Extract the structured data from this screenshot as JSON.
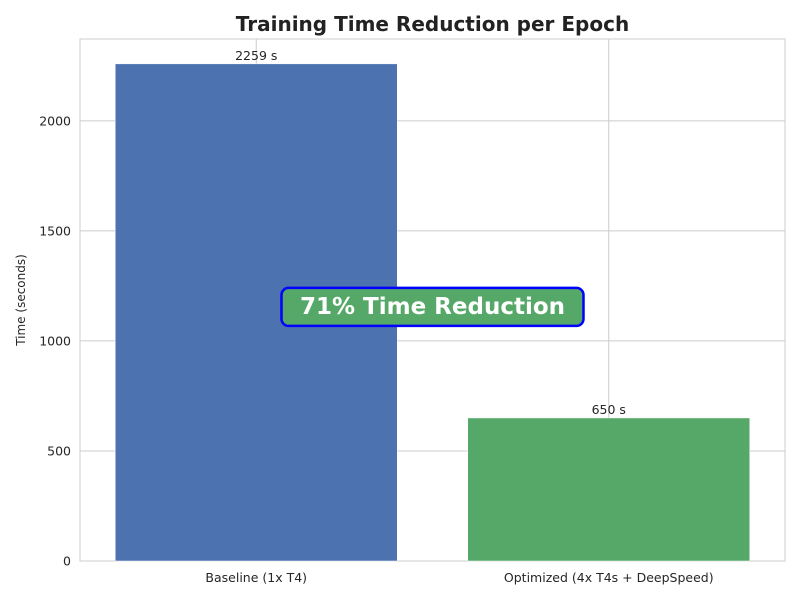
{
  "chart_data": {
    "type": "bar",
    "title": "Training Time Reduction per Epoch",
    "xlabel": "",
    "ylabel": "Time (seconds)",
    "categories": [
      "Baseline (1x T4)",
      "Optimized (4x T4s + DeepSpeed)"
    ],
    "values": [
      2259,
      650
    ],
    "value_labels": [
      "2259 s",
      "650 s"
    ],
    "bar_colors": [
      "#4c72b0",
      "#55a868"
    ],
    "ylim": [
      0,
      2371.95
    ],
    "yticks": [
      0,
      500,
      1000,
      1500,
      2000
    ],
    "ytick_labels": [
      "0",
      "500",
      "1000",
      "1500",
      "2000"
    ],
    "grid": true,
    "annotation": {
      "text": "71% Time Reduction",
      "y": 1154.5,
      "x_position": "center",
      "background": "#55a868",
      "border_color": "#0000ff",
      "text_color": "#ffffff"
    }
  }
}
